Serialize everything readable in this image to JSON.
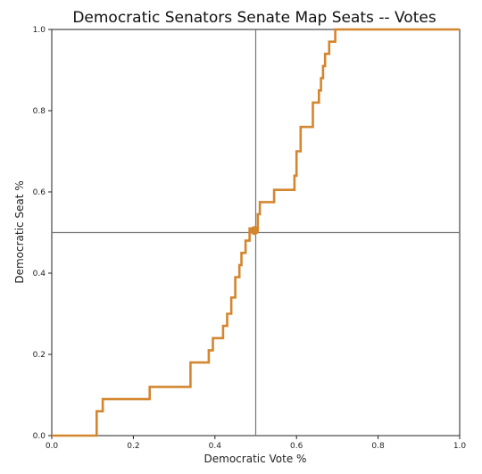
{
  "chart_data": {
    "type": "line",
    "title": "Democratic Senators Senate Map  Seats -- Votes",
    "xlabel": "Democratic Vote %",
    "ylabel": "Democratic Seat %",
    "xlim": [
      0,
      1
    ],
    "ylim": [
      0,
      1
    ],
    "xticks": [
      "0.0",
      "0.2",
      "0.4",
      "0.6",
      "0.8",
      "1.0"
    ],
    "yticks": [
      "0.0",
      "0.2",
      "0.4",
      "0.6",
      "0.8",
      "1.0"
    ],
    "grid": false,
    "reference_lines": {
      "x": 0.5,
      "y": 0.5
    },
    "marker_point": {
      "x": 0.497,
      "y": 0.505
    },
    "series": [
      {
        "color": "#d4862e",
        "step": "post",
        "points": [
          [
            0.0,
            0.0
          ],
          [
            0.11,
            0.0
          ],
          [
            0.11,
            0.06
          ],
          [
            0.125,
            0.06
          ],
          [
            0.125,
            0.09
          ],
          [
            0.24,
            0.09
          ],
          [
            0.24,
            0.12
          ],
          [
            0.34,
            0.12
          ],
          [
            0.34,
            0.18
          ],
          [
            0.385,
            0.18
          ],
          [
            0.385,
            0.21
          ],
          [
            0.395,
            0.21
          ],
          [
            0.395,
            0.24
          ],
          [
            0.42,
            0.24
          ],
          [
            0.42,
            0.27
          ],
          [
            0.43,
            0.27
          ],
          [
            0.43,
            0.3
          ],
          [
            0.44,
            0.3
          ],
          [
            0.44,
            0.34
          ],
          [
            0.45,
            0.34
          ],
          [
            0.45,
            0.39
          ],
          [
            0.46,
            0.39
          ],
          [
            0.46,
            0.42
          ],
          [
            0.465,
            0.42
          ],
          [
            0.465,
            0.45
          ],
          [
            0.475,
            0.45
          ],
          [
            0.475,
            0.48
          ],
          [
            0.485,
            0.48
          ],
          [
            0.485,
            0.51
          ],
          [
            0.505,
            0.51
          ],
          [
            0.505,
            0.545
          ],
          [
            0.51,
            0.545
          ],
          [
            0.51,
            0.575
          ],
          [
            0.545,
            0.575
          ],
          [
            0.545,
            0.605
          ],
          [
            0.595,
            0.605
          ],
          [
            0.595,
            0.64
          ],
          [
            0.6,
            0.64
          ],
          [
            0.6,
            0.7
          ],
          [
            0.61,
            0.7
          ],
          [
            0.61,
            0.76
          ],
          [
            0.64,
            0.76
          ],
          [
            0.64,
            0.82
          ],
          [
            0.655,
            0.82
          ],
          [
            0.655,
            0.85
          ],
          [
            0.66,
            0.85
          ],
          [
            0.66,
            0.88
          ],
          [
            0.665,
            0.88
          ],
          [
            0.665,
            0.91
          ],
          [
            0.67,
            0.91
          ],
          [
            0.67,
            0.94
          ],
          [
            0.68,
            0.94
          ],
          [
            0.68,
            0.97
          ],
          [
            0.695,
            0.97
          ],
          [
            0.695,
            1.0
          ],
          [
            1.0,
            1.0
          ]
        ]
      }
    ]
  }
}
